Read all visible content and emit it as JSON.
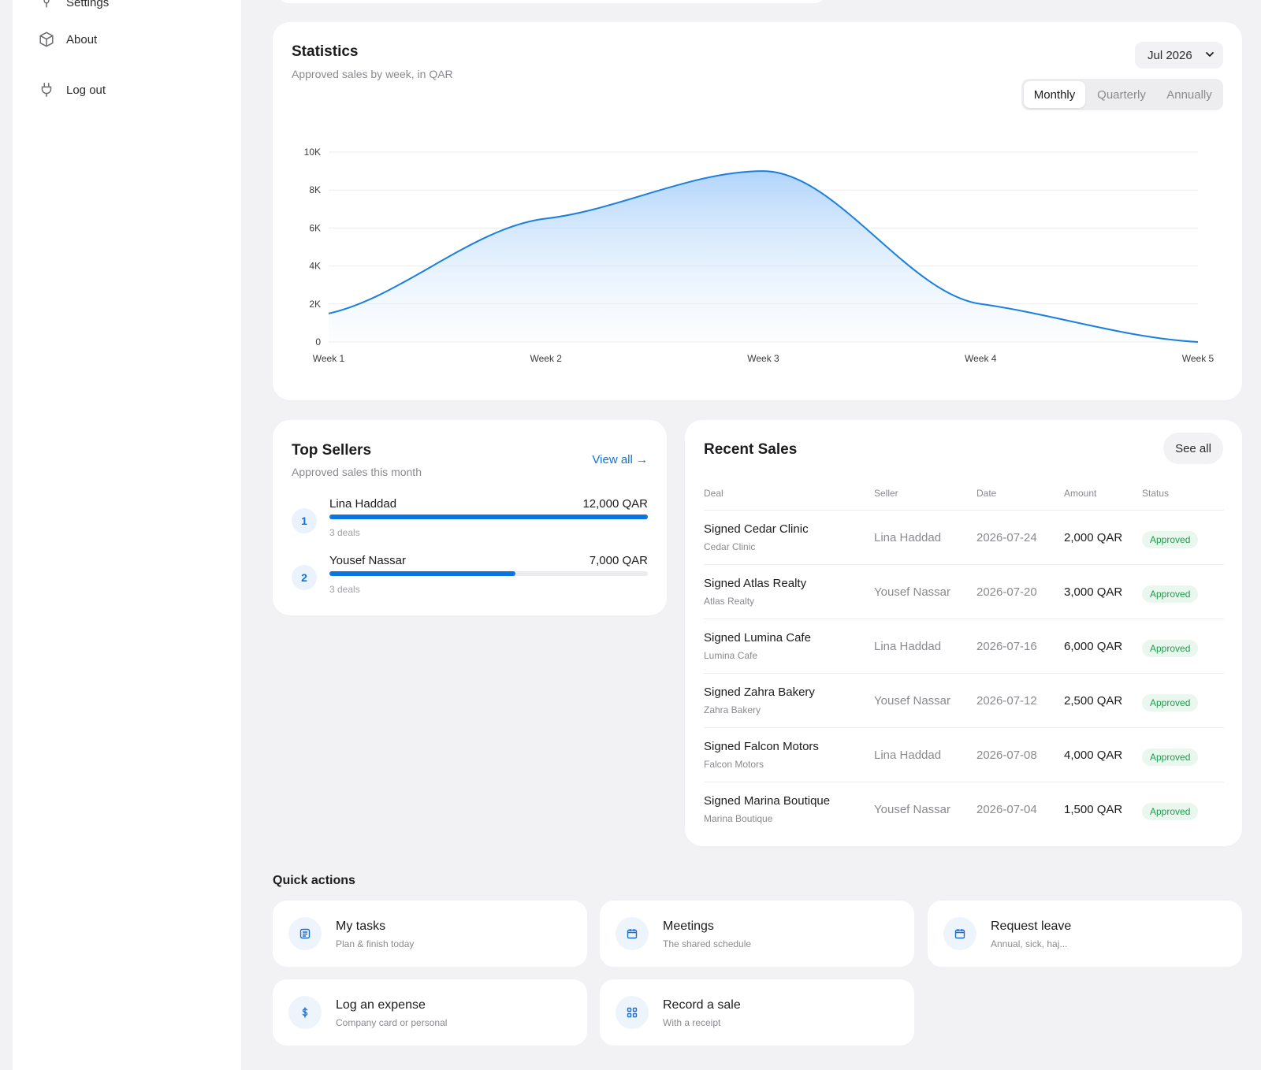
{
  "sidebar": {
    "items": [
      {
        "label": "Settings",
        "icon": "bulb-icon"
      },
      {
        "label": "About",
        "icon": "box-icon"
      },
      {
        "label": "Log out",
        "icon": "plug-icon"
      }
    ]
  },
  "statistics": {
    "title": "Statistics",
    "subtitle": "Approved sales by week, in QAR",
    "month_selected": "Jul 2026",
    "tabs": [
      "Monthly",
      "Quarterly",
      "Annually"
    ],
    "active_tab": "Monthly"
  },
  "chart_data": {
    "type": "area",
    "categories": [
      "Week 1",
      "Week 2",
      "Week 3",
      "Week 4",
      "Week 5"
    ],
    "values": [
      1500,
      6500,
      9000,
      2000,
      0
    ],
    "yticks": [
      "0",
      "2K",
      "4K",
      "6K",
      "8K",
      "10K"
    ],
    "ylim": [
      0,
      10000
    ],
    "grid": true,
    "colors": {
      "line": "#1a7fe0",
      "fill": "#bcdcfb"
    }
  },
  "top_sellers": {
    "title": "Top Sellers",
    "subtitle": "Approved sales this month",
    "view_all": "View all →",
    "max_amount": 12000,
    "items": [
      {
        "rank": "1",
        "name": "Lina Haddad",
        "amount_label": "12,000 QAR",
        "amount": 12000,
        "deals": "3 deals"
      },
      {
        "rank": "2",
        "name": "Yousef Nassar",
        "amount_label": "7,000 QAR",
        "amount": 7000,
        "deals": "3 deals"
      }
    ]
  },
  "recent_sales": {
    "title": "Recent Sales",
    "see_all": "See all",
    "columns": [
      "Deal",
      "Seller",
      "Date",
      "Amount",
      "Status"
    ],
    "rows": [
      {
        "deal": "Signed Cedar Clinic",
        "client": "Cedar Clinic",
        "seller": "Lina Haddad",
        "date": "2026-07-24",
        "amount": "2,000 QAR",
        "status": "Approved"
      },
      {
        "deal": "Signed Atlas Realty",
        "client": "Atlas Realty",
        "seller": "Yousef Nassar",
        "date": "2026-07-20",
        "amount": "3,000 QAR",
        "status": "Approved"
      },
      {
        "deal": "Signed Lumina Cafe",
        "client": "Lumina Cafe",
        "seller": "Lina Haddad",
        "date": "2026-07-16",
        "amount": "6,000 QAR",
        "status": "Approved"
      },
      {
        "deal": "Signed Zahra Bakery",
        "client": "Zahra Bakery",
        "seller": "Yousef Nassar",
        "date": "2026-07-12",
        "amount": "2,500 QAR",
        "status": "Approved"
      },
      {
        "deal": "Signed Falcon Motors",
        "client": "Falcon Motors",
        "seller": "Lina Haddad",
        "date": "2026-07-08",
        "amount": "4,000 QAR",
        "status": "Approved"
      },
      {
        "deal": "Signed Marina Boutique",
        "client": "Marina Boutique",
        "seller": "Yousef Nassar",
        "date": "2026-07-04",
        "amount": "1,500 QAR",
        "status": "Approved"
      }
    ]
  },
  "quick_actions": {
    "title": "Quick actions",
    "items": [
      {
        "name": "My tasks",
        "desc": "Plan & finish today",
        "icon": "list-icon"
      },
      {
        "name": "Meetings",
        "desc": "The shared schedule",
        "icon": "calendar-icon"
      },
      {
        "name": "Request leave",
        "desc": "Annual, sick, haj...",
        "icon": "calendar-icon"
      },
      {
        "name": "Log an expense",
        "desc": "Company card or personal",
        "icon": "dollar-icon"
      },
      {
        "name": "Record a sale",
        "desc": "With a receipt",
        "icon": "grid-icon"
      }
    ]
  }
}
